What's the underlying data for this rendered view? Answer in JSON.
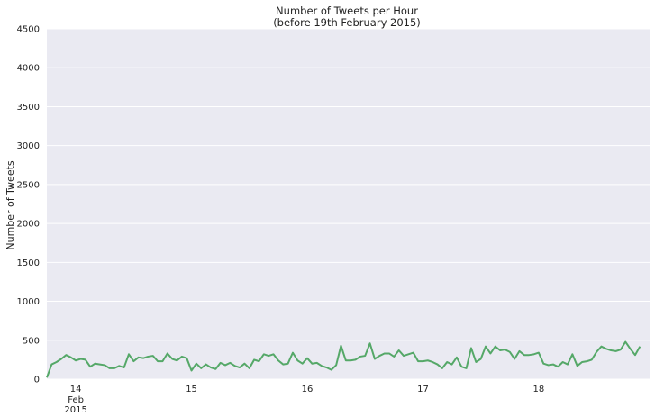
{
  "chart_data": {
    "type": "line",
    "title": "Number of Tweets per Hour",
    "subtitle": "(before 19th February 2015)",
    "xlabel": "",
    "ylabel": "Number of Tweets",
    "ylim": [
      0,
      4500
    ],
    "yticks": [
      "0",
      "500",
      "1000",
      "1500",
      "2000",
      "2500",
      "3000",
      "3500",
      "4000",
      "4500"
    ],
    "xlim": [
      "2015-02-13 18:00",
      "2015-02-18 23:00"
    ],
    "xticks": [
      {
        "x": "2015-02-14 00:00",
        "label": "14",
        "sublabels": [
          "Feb",
          "2015"
        ]
      },
      {
        "x": "2015-02-15 00:00",
        "label": "15",
        "sublabels": []
      },
      {
        "x": "2015-02-16 00:00",
        "label": "16",
        "sublabels": []
      },
      {
        "x": "2015-02-17 00:00",
        "label": "17",
        "sublabels": []
      },
      {
        "x": "2015-02-18 00:00",
        "label": "18",
        "sublabels": []
      }
    ],
    "grid": true,
    "colors": {
      "background": "#eaeaf2",
      "grid": "#ffffff",
      "line": "#55a868"
    },
    "series": [
      {
        "x_start": "2015-02-13 18:00",
        "x_step_hours": 1,
        "values": [
          20,
          190,
          220,
          260,
          310,
          280,
          240,
          260,
          250,
          160,
          200,
          190,
          180,
          140,
          140,
          170,
          150,
          320,
          230,
          280,
          270,
          290,
          300,
          230,
          230,
          330,
          260,
          240,
          290,
          270,
          110,
          200,
          140,
          190,
          150,
          130,
          210,
          180,
          210,
          170,
          150,
          200,
          140,
          250,
          230,
          320,
          300,
          320,
          240,
          190,
          200,
          340,
          240,
          200,
          270,
          200,
          210,
          170,
          150,
          120,
          180,
          430,
          240,
          240,
          250,
          290,
          300,
          460,
          260,
          300,
          330,
          330,
          290,
          370,
          300,
          320,
          340,
          230,
          230,
          240,
          220,
          190,
          140,
          220,
          190,
          280,
          160,
          140,
          400,
          220,
          260,
          420,
          330,
          420,
          370,
          380,
          350,
          260,
          360,
          310,
          310,
          320,
          340,
          200,
          180,
          190,
          160,
          220,
          190,
          320,
          170,
          220,
          230,
          250,
          350,
          420,
          390,
          370,
          360,
          380,
          480,
          390,
          310,
          420
        ]
      }
    ]
  }
}
